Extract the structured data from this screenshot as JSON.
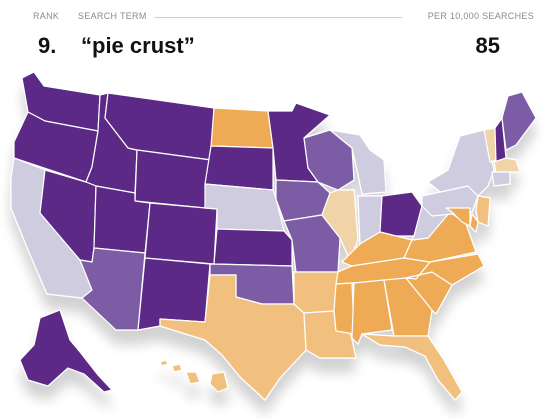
{
  "header": {
    "rank_label": "RANK",
    "term_label": "SEARCH TERM",
    "per_label": "PER 10,000 SEARCHES",
    "rank": "9.",
    "term": "“pie crust”",
    "score": "85"
  },
  "colors": {
    "dark_purple": "#5b2a86",
    "mid_purple": "#7d5ba6",
    "light_gray": "#cfcce0",
    "pale_tan": "#f0d3a6",
    "light_orange": "#f2c07e",
    "orange": "#eeaa55"
  },
  "states": [
    {
      "id": "WA",
      "level": "dark_purple"
    },
    {
      "id": "OR",
      "level": "dark_purple"
    },
    {
      "id": "CA",
      "level": "light_gray"
    },
    {
      "id": "ID",
      "level": "dark_purple"
    },
    {
      "id": "NV",
      "level": "dark_purple"
    },
    {
      "id": "MT",
      "level": "dark_purple"
    },
    {
      "id": "WY",
      "level": "dark_purple"
    },
    {
      "id": "UT",
      "level": "dark_purple"
    },
    {
      "id": "AZ",
      "level": "mid_purple"
    },
    {
      "id": "CO",
      "level": "dark_purple"
    },
    {
      "id": "NM",
      "level": "dark_purple"
    },
    {
      "id": "ND",
      "level": "orange"
    },
    {
      "id": "SD",
      "level": "dark_purple"
    },
    {
      "id": "NE",
      "level": "light_gray"
    },
    {
      "id": "KS",
      "level": "dark_purple"
    },
    {
      "id": "OK",
      "level": "mid_purple"
    },
    {
      "id": "TX",
      "level": "light_orange"
    },
    {
      "id": "MN",
      "level": "dark_purple"
    },
    {
      "id": "IA",
      "level": "mid_purple"
    },
    {
      "id": "MO",
      "level": "mid_purple"
    },
    {
      "id": "AR",
      "level": "light_orange"
    },
    {
      "id": "LA",
      "level": "light_orange"
    },
    {
      "id": "WI",
      "level": "mid_purple"
    },
    {
      "id": "IL",
      "level": "pale_tan"
    },
    {
      "id": "MI",
      "level": "light_gray"
    },
    {
      "id": "IN",
      "level": "light_gray"
    },
    {
      "id": "OH",
      "level": "dark_purple"
    },
    {
      "id": "KY",
      "level": "orange"
    },
    {
      "id": "TN",
      "level": "orange"
    },
    {
      "id": "MS",
      "level": "orange"
    },
    {
      "id": "AL",
      "level": "orange"
    },
    {
      "id": "GA",
      "level": "orange"
    },
    {
      "id": "FL",
      "level": "light_orange"
    },
    {
      "id": "SC",
      "level": "orange"
    },
    {
      "id": "NC",
      "level": "orange"
    },
    {
      "id": "VA",
      "level": "orange"
    },
    {
      "id": "WV",
      "level": "light_gray"
    },
    {
      "id": "PA",
      "level": "light_gray"
    },
    {
      "id": "NY",
      "level": "light_gray"
    },
    {
      "id": "VT",
      "level": "pale_tan"
    },
    {
      "id": "NH",
      "level": "dark_purple"
    },
    {
      "id": "ME",
      "level": "mid_purple"
    },
    {
      "id": "MA",
      "level": "pale_tan"
    },
    {
      "id": "CT",
      "level": "light_gray"
    },
    {
      "id": "NJ",
      "level": "light_orange"
    },
    {
      "id": "DE",
      "level": "orange"
    },
    {
      "id": "MD",
      "level": "orange"
    },
    {
      "id": "AK",
      "level": "dark_purple"
    },
    {
      "id": "HI",
      "level": "light_orange"
    }
  ]
}
